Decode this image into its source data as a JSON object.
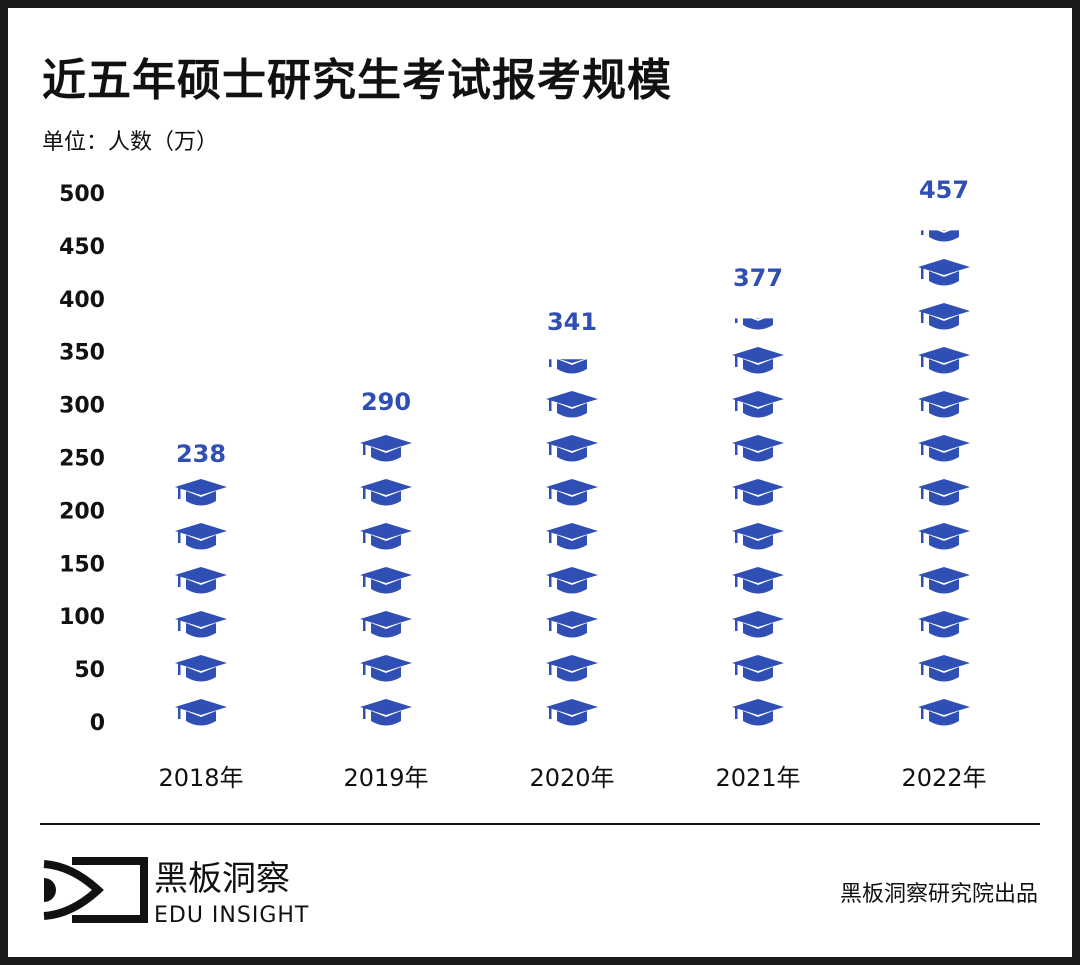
{
  "title": "近五年硕士研究生考试报考规模",
  "unit_label": "单位：人数（万）",
  "chart_data": {
    "type": "bar",
    "style": "pictograph",
    "icon": "graduation-cap-icon",
    "categories": [
      "2018年",
      "2019年",
      "2020年",
      "2021年",
      "2022年"
    ],
    "values": [
      238,
      290,
      341,
      377,
      457
    ],
    "data_labels": [
      "238",
      "290",
      "341",
      "377",
      "457"
    ],
    "yticks": [
      "0",
      "50",
      "100",
      "150",
      "200",
      "250",
      "300",
      "350",
      "400",
      "450",
      "500"
    ],
    "ylim": [
      0,
      500
    ],
    "grid": false,
    "color": "#2f4fb5"
  },
  "footer": {
    "logo_cn": "黑板洞察",
    "logo_en": "EDU INSIGHT",
    "credit": "黑板洞察研究院出品"
  }
}
